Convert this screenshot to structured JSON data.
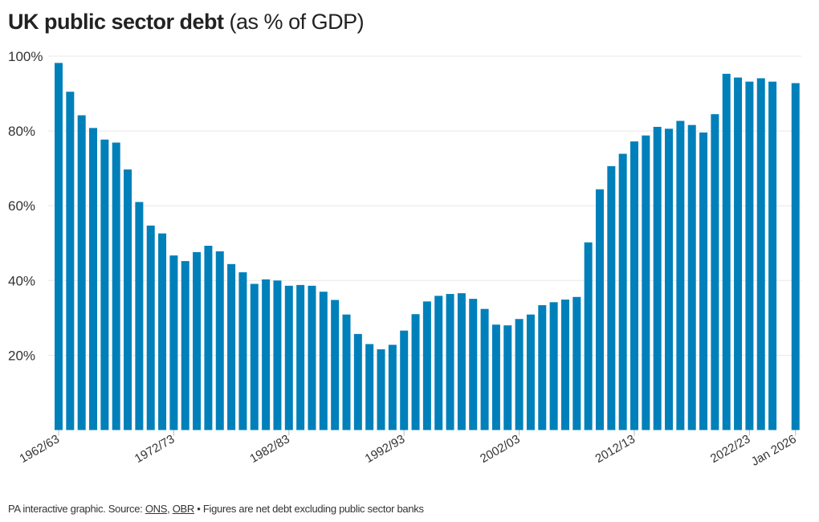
{
  "title": {
    "bold": "UK public sector debt",
    "normal": "(as % of GDP)"
  },
  "footer": {
    "prefix": "PA interactive graphic. Source: ",
    "source1": "ONS",
    "sep": ", ",
    "source2": "OBR",
    "note": " • Figures are net debt excluding public sector banks"
  },
  "colors": {
    "bar": "#0080BA",
    "grid": "#e8e8e8",
    "text": "#333333"
  },
  "chart_data": {
    "type": "bar",
    "title": "UK public sector debt (as % of GDP)",
    "xlabel": "",
    "ylabel": "",
    "ylim": [
      0,
      100
    ],
    "yticks": [
      20,
      40,
      60,
      80,
      100
    ],
    "ytick_labels": [
      "20%",
      "40%",
      "60%",
      "80%",
      "100%"
    ],
    "xtick_labels": [
      "1962/63",
      "1972/73",
      "1982/83",
      "1992/93",
      "2002/03",
      "2012/13",
      "2022/23",
      "Jan 2026"
    ],
    "grid": true,
    "categories": [
      "1962/63",
      "1963/64",
      "1964/65",
      "1965/66",
      "1966/67",
      "1967/68",
      "1968/69",
      "1969/70",
      "1970/71",
      "1971/72",
      "1972/73",
      "1973/74",
      "1974/75",
      "1975/76",
      "1976/77",
      "1977/78",
      "1978/79",
      "1979/80",
      "1980/81",
      "1981/82",
      "1982/83",
      "1983/84",
      "1984/85",
      "1985/86",
      "1986/87",
      "1987/88",
      "1988/89",
      "1989/90",
      "1990/91",
      "1991/92",
      "1992/93",
      "1993/94",
      "1994/95",
      "1995/96",
      "1996/97",
      "1997/98",
      "1998/99",
      "1999/00",
      "2000/01",
      "2001/02",
      "2002/03",
      "2003/04",
      "2004/05",
      "2005/06",
      "2006/07",
      "2007/08",
      "2008/09",
      "2009/10",
      "2010/11",
      "2011/12",
      "2012/13",
      "2013/14",
      "2014/15",
      "2015/16",
      "2016/17",
      "2017/18",
      "2018/19",
      "2019/20",
      "2020/21",
      "2021/22",
      "2022/23",
      "2023/24",
      "2024/25",
      "Jan 2026"
    ],
    "values": [
      98.2,
      90.5,
      84.2,
      80.8,
      77.7,
      76.9,
      69.7,
      61.0,
      54.7,
      52.6,
      46.7,
      45.2,
      47.6,
      49.3,
      47.8,
      44.4,
      42.2,
      39.1,
      40.3,
      40.0,
      38.6,
      38.8,
      38.6,
      37.0,
      34.8,
      30.9,
      25.7,
      23.0,
      21.6,
      22.8,
      26.6,
      31.0,
      34.4,
      35.9,
      36.4,
      36.6,
      35.1,
      32.4,
      28.2,
      28.0,
      29.7,
      30.9,
      33.4,
      34.2,
      34.9,
      35.6,
      50.2,
      64.4,
      70.6,
      73.9,
      77.2,
      78.8,
      81.1,
      80.6,
      82.7,
      81.6,
      79.6,
      84.5,
      95.3,
      94.3,
      93.2,
      94.1,
      93.2,
      92.8
    ]
  }
}
